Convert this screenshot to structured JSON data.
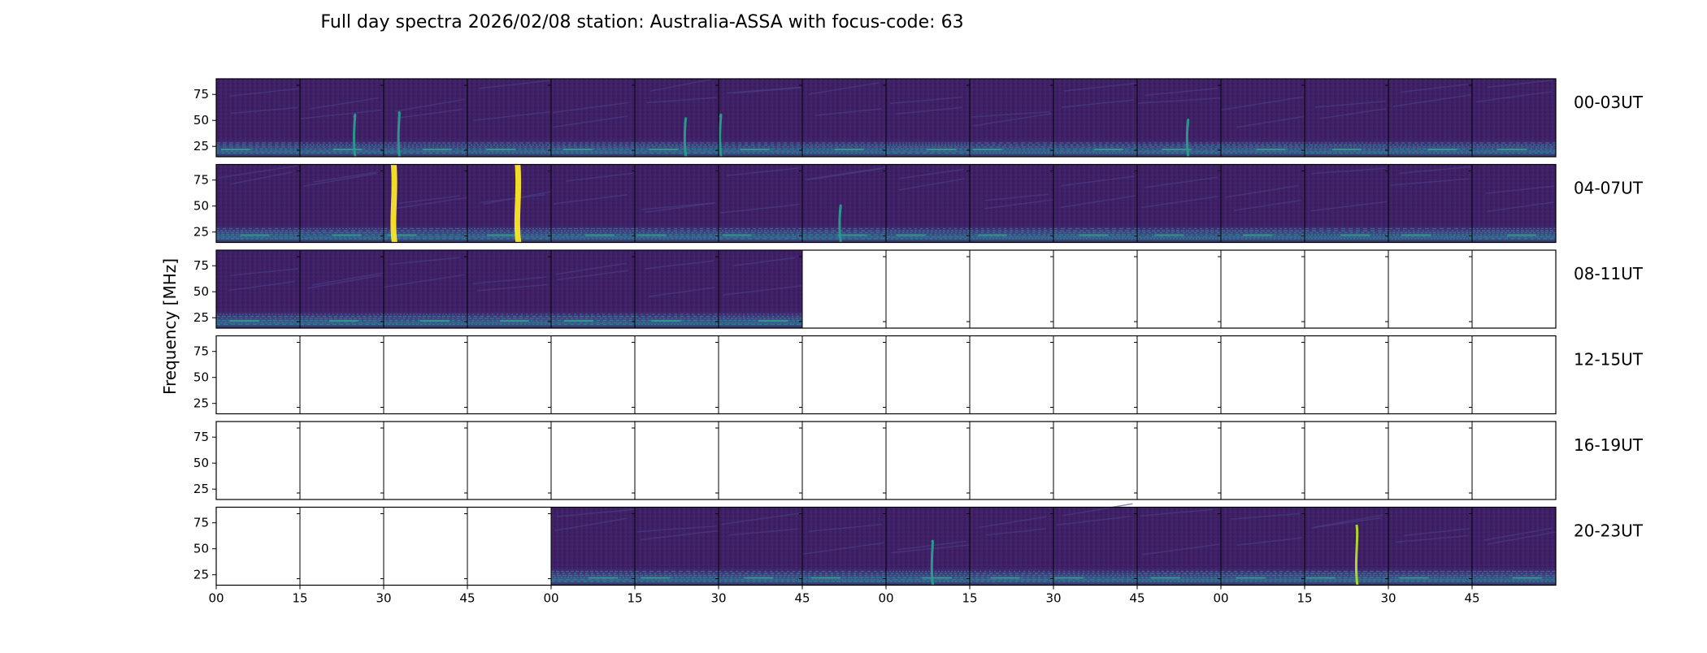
{
  "chart_data": {
    "type": "heatmap",
    "title": "Full day spectra 2026/02/08 station: Australia-ASSA with focus-code: 63",
    "ylabel": "Frequency [MHz]",
    "xlabel": "",
    "colormap": "viridis",
    "colors": {
      "background": "#3e1f62",
      "band_low": "#35a08c",
      "band_mid": "#21908d",
      "burst": "#fde725",
      "burst_alt": "#b5de2b"
    },
    "ylim": [
      15,
      90
    ],
    "y_ticks": [
      "75",
      "50",
      "25"
    ],
    "y_tick_values": [
      75,
      50,
      25
    ],
    "x_tick_labels": [
      "00",
      "15",
      "30",
      "45",
      "00",
      "15",
      "30",
      "45",
      "00",
      "15",
      "30",
      "45",
      "00",
      "15",
      "30",
      "45"
    ],
    "panels_per_row": 16,
    "panel_duration_min": 15,
    "rows": [
      {
        "label": "00-03UT",
        "data_panels": [
          0,
          15
        ],
        "bursts": [
          {
            "panel": 2,
            "pos": 0.18,
            "strength": 0.5
          },
          {
            "panel": 1,
            "pos": 0.65,
            "strength": 0.45
          },
          {
            "panel": 5,
            "pos": 0.6,
            "strength": 0.35
          },
          {
            "panel": 6,
            "pos": 0.02,
            "strength": 0.45
          },
          {
            "panel": 11,
            "pos": 0.6,
            "strength": 0.3
          }
        ]
      },
      {
        "label": "04-07UT",
        "data_panels": [
          0,
          15
        ],
        "bursts": [
          {
            "panel": 2,
            "pos": 0.12,
            "strength": 0.9
          },
          {
            "panel": 3,
            "pos": 0.6,
            "strength": 1.0
          },
          {
            "panel": 7,
            "pos": 0.45,
            "strength": 0.3
          }
        ]
      },
      {
        "label": "08-11UT",
        "data_panels": [
          0,
          6
        ],
        "bursts": []
      },
      {
        "label": "12-15UT",
        "data_panels": null,
        "bursts": []
      },
      {
        "label": "16-19UT",
        "data_panels": null,
        "bursts": []
      },
      {
        "label": "20-23UT",
        "data_panels": [
          4,
          15
        ],
        "bursts": [
          {
            "panel": 8,
            "pos": 0.55,
            "strength": 0.5
          },
          {
            "panel": 13,
            "pos": 0.62,
            "strength": 0.75
          }
        ]
      }
    ]
  }
}
